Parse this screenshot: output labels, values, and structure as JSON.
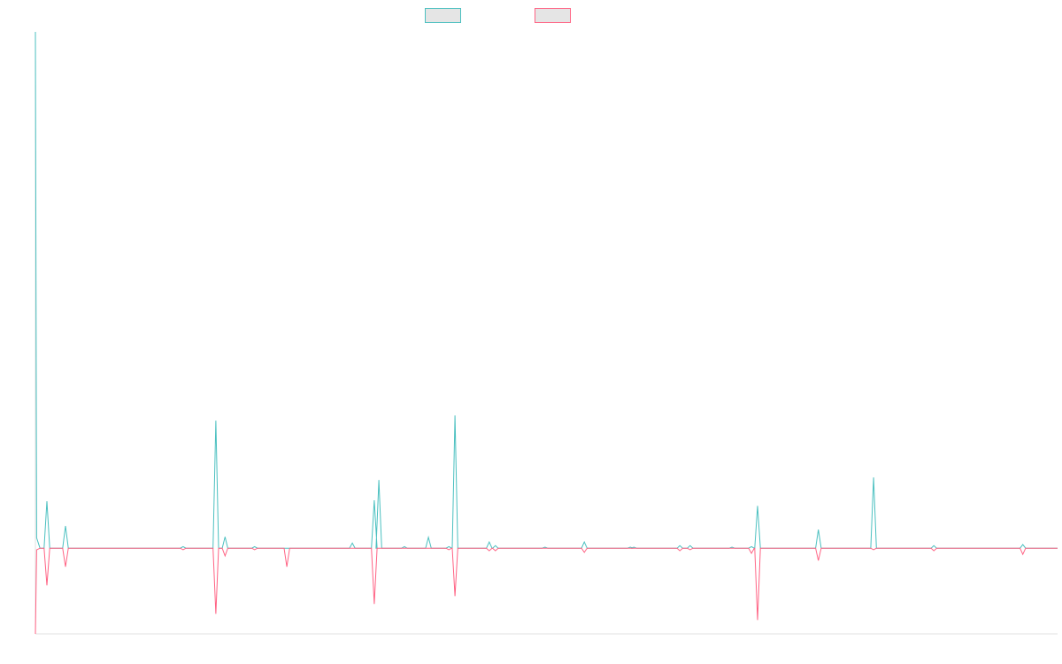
{
  "chart_data": {
    "type": "line",
    "title": "",
    "xlabel": "",
    "ylabel": "",
    "xlim": [
      0,
      200
    ],
    "ylim": [
      -16.6,
      100
    ],
    "grid": false,
    "legend": {
      "placement": "top-center"
    },
    "series": [
      {
        "name": "",
        "color": "#4bc0c0",
        "legend_fill": "#e5e5e5",
        "points": [
          [
            0,
            100
          ],
          [
            2.25,
            9.1
          ],
          [
            5.89,
            4.3
          ],
          [
            28.9,
            0.3
          ],
          [
            35.3,
            24.7
          ],
          [
            37.1,
            2.2
          ],
          [
            42.9,
            0.3
          ],
          [
            62.0,
            1.0
          ],
          [
            66.3,
            9.3
          ],
          [
            67.2,
            13.2
          ],
          [
            72.2,
            0.3
          ],
          [
            76.9,
            2.1
          ],
          [
            80.9,
            0.3
          ],
          [
            82.1,
            25.7
          ],
          [
            88.8,
            1.2
          ],
          [
            90.0,
            0.5
          ],
          [
            99.7,
            0.2
          ],
          [
            107.4,
            1.2
          ],
          [
            116.4,
            0.2
          ],
          [
            117.1,
            0.2
          ],
          [
            126.1,
            0.5
          ],
          [
            128.1,
            0.5
          ],
          [
            136.3,
            0.2
          ],
          [
            140.1,
            0.3
          ],
          [
            141.3,
            8.2
          ],
          [
            153.2,
            3.6
          ],
          [
            164.0,
            13.7
          ],
          [
            175.8,
            0.5
          ],
          [
            193.2,
            0.7
          ]
        ]
      },
      {
        "name": "",
        "color": "#ff6384",
        "legend_fill": "#e5e5e5",
        "points": [
          [
            0,
            -16.6
          ],
          [
            2.25,
            -7.2
          ],
          [
            5.89,
            -3.6
          ],
          [
            28.9,
            -0.3
          ],
          [
            35.3,
            -12.7
          ],
          [
            37.1,
            -1.5
          ],
          [
            42.9,
            -0.3
          ],
          [
            49.2,
            -3.6
          ],
          [
            66.3,
            -10.8
          ],
          [
            80.9,
            -0.3
          ],
          [
            82.1,
            -9.3
          ],
          [
            88.8,
            -0.5
          ],
          [
            90.0,
            -0.5
          ],
          [
            107.4,
            -0.8
          ],
          [
            126.1,
            -0.5
          ],
          [
            128.1,
            -0.3
          ],
          [
            140.1,
            -1.0
          ],
          [
            141.3,
            -13.9
          ],
          [
            153.2,
            -2.4
          ],
          [
            164.0,
            -0.3
          ],
          [
            175.8,
            -0.5
          ],
          [
            193.2,
            -1.2
          ]
        ]
      }
    ]
  }
}
